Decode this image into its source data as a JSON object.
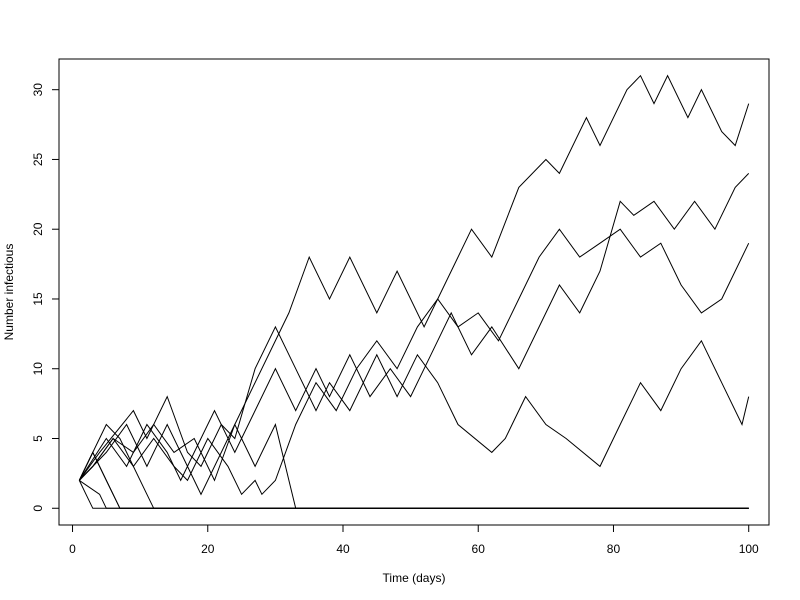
{
  "chart_data": {
    "type": "line",
    "xlabel": "Time (days)",
    "ylabel": "Number infectious",
    "xlim": [
      -2,
      103
    ],
    "ylim": [
      -1.2,
      32.2
    ],
    "x_ticks": [
      0,
      20,
      40,
      60,
      80,
      100
    ],
    "y_ticks": [
      0,
      5,
      10,
      15,
      20,
      25,
      30
    ],
    "line_color": "#000000",
    "series": [
      {
        "values": [
          [
            1,
            2
          ],
          [
            3,
            4
          ],
          [
            5,
            2
          ],
          [
            6,
            1
          ],
          [
            7,
            0
          ],
          [
            100,
            0
          ]
        ]
      },
      {
        "values": [
          [
            1,
            2
          ],
          [
            2,
            1
          ],
          [
            3,
            0
          ],
          [
            100,
            0
          ]
        ]
      },
      {
        "values": [
          [
            1,
            2
          ],
          [
            4,
            1
          ],
          [
            5,
            0
          ],
          [
            100,
            0
          ]
        ]
      },
      {
        "values": [
          [
            1,
            2
          ],
          [
            2,
            3
          ],
          [
            5,
            6
          ],
          [
            7,
            5
          ],
          [
            8,
            4
          ],
          [
            11,
            1
          ],
          [
            12,
            0
          ],
          [
            100,
            0
          ]
        ]
      },
      {
        "values": [
          [
            1,
            2
          ],
          [
            5,
            4
          ],
          [
            8,
            6
          ],
          [
            11,
            3
          ],
          [
            14,
            6
          ],
          [
            17,
            3
          ],
          [
            19,
            1
          ],
          [
            23,
            5
          ],
          [
            26,
            8
          ],
          [
            32,
            14
          ],
          [
            35,
            18
          ],
          [
            38,
            15
          ],
          [
            41,
            18
          ],
          [
            45,
            14
          ],
          [
            48,
            17
          ],
          [
            52,
            13
          ],
          [
            54,
            15
          ],
          [
            57,
            18
          ],
          [
            59,
            20
          ],
          [
            62,
            18
          ],
          [
            66,
            23
          ],
          [
            70,
            25
          ],
          [
            72,
            24
          ],
          [
            76,
            28
          ],
          [
            78,
            26
          ],
          [
            82,
            30
          ],
          [
            84,
            31
          ],
          [
            86,
            29
          ],
          [
            88,
            31
          ],
          [
            91,
            28
          ],
          [
            93,
            30
          ],
          [
            96,
            27
          ],
          [
            98,
            26
          ],
          [
            100,
            29
          ]
        ]
      },
      {
        "values": [
          [
            1,
            2
          ],
          [
            3,
            4
          ],
          [
            6,
            1
          ],
          [
            7,
            0
          ],
          [
            100,
            0
          ]
        ]
      },
      {
        "values": [
          [
            1,
            2
          ],
          [
            4,
            4
          ],
          [
            9,
            7
          ],
          [
            11,
            5
          ],
          [
            14,
            8
          ],
          [
            17,
            4
          ],
          [
            19,
            3
          ],
          [
            22,
            6
          ],
          [
            24,
            5
          ],
          [
            27,
            10
          ],
          [
            30,
            13
          ],
          [
            33,
            10
          ],
          [
            36,
            7
          ],
          [
            38,
            9
          ],
          [
            41,
            7
          ],
          [
            45,
            11
          ],
          [
            48,
            8
          ],
          [
            51,
            11
          ],
          [
            54,
            9
          ],
          [
            57,
            6
          ],
          [
            62,
            4
          ],
          [
            64,
            5
          ],
          [
            67,
            8
          ],
          [
            70,
            6
          ],
          [
            73,
            5
          ],
          [
            78,
            3
          ],
          [
            81,
            6
          ],
          [
            84,
            9
          ],
          [
            87,
            7
          ],
          [
            90,
            10
          ],
          [
            93,
            12
          ],
          [
            96,
            9
          ],
          [
            99,
            6
          ],
          [
            100,
            8
          ]
        ]
      },
      {
        "values": [
          [
            1,
            2
          ],
          [
            5,
            5
          ],
          [
            8,
            3
          ],
          [
            11,
            6
          ],
          [
            14,
            4
          ],
          [
            16,
            2
          ],
          [
            18,
            4
          ],
          [
            21,
            7
          ],
          [
            24,
            4
          ],
          [
            27,
            7
          ],
          [
            30,
            10
          ],
          [
            33,
            7
          ],
          [
            36,
            10
          ],
          [
            38,
            8
          ],
          [
            41,
            11
          ],
          [
            44,
            8
          ],
          [
            47,
            10
          ],
          [
            50,
            8
          ],
          [
            53,
            11
          ],
          [
            56,
            14
          ],
          [
            59,
            11
          ],
          [
            62,
            13
          ],
          [
            66,
            10
          ],
          [
            69,
            13
          ],
          [
            72,
            16
          ],
          [
            75,
            14
          ],
          [
            78,
            17
          ],
          [
            81,
            22
          ],
          [
            83,
            21
          ],
          [
            86,
            22
          ],
          [
            89,
            20
          ],
          [
            92,
            22
          ],
          [
            95,
            20
          ],
          [
            98,
            23
          ],
          [
            100,
            24
          ]
        ]
      },
      {
        "values": [
          [
            1,
            2
          ],
          [
            3,
            3
          ],
          [
            6,
            5
          ],
          [
            9,
            3
          ],
          [
            12,
            5
          ],
          [
            15,
            3
          ],
          [
            17,
            2
          ],
          [
            20,
            5
          ],
          [
            23,
            3
          ],
          [
            25,
            1
          ],
          [
            27,
            2
          ],
          [
            28,
            1
          ],
          [
            30,
            2
          ],
          [
            33,
            6
          ],
          [
            36,
            9
          ],
          [
            39,
            7
          ],
          [
            42,
            10
          ],
          [
            45,
            12
          ],
          [
            48,
            10
          ],
          [
            51,
            13
          ],
          [
            54,
            15
          ],
          [
            57,
            13
          ],
          [
            60,
            14
          ],
          [
            63,
            12
          ],
          [
            66,
            15
          ],
          [
            69,
            18
          ],
          [
            72,
            20
          ],
          [
            75,
            18
          ],
          [
            78,
            19
          ],
          [
            81,
            20
          ],
          [
            84,
            18
          ],
          [
            87,
            19
          ],
          [
            90,
            16
          ],
          [
            93,
            14
          ],
          [
            96,
            15
          ],
          [
            100,
            19
          ]
        ]
      },
      {
        "values": [
          [
            1,
            2
          ],
          [
            3,
            3
          ],
          [
            6,
            5
          ],
          [
            9,
            4
          ],
          [
            12,
            6
          ],
          [
            15,
            4
          ],
          [
            18,
            5
          ],
          [
            21,
            2
          ],
          [
            24,
            6
          ],
          [
            27,
            3
          ],
          [
            30,
            6
          ],
          [
            32,
            2
          ],
          [
            33,
            0
          ],
          [
            100,
            0
          ]
        ]
      }
    ]
  }
}
